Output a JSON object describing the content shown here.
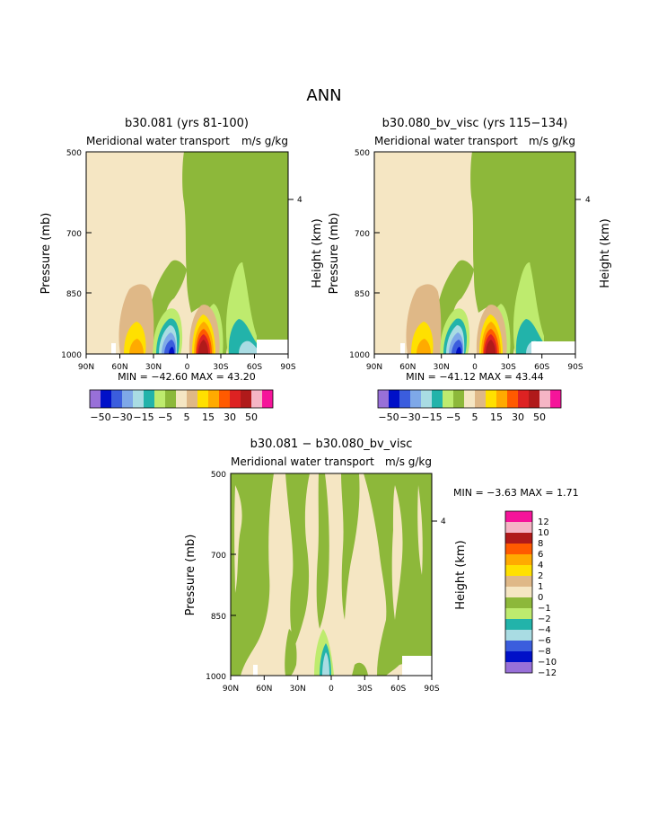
{
  "figure": {
    "title": "ANN"
  },
  "colors": {
    "tan": "#F5E6C3",
    "green": "#8DB83A",
    "lightgreen": "#BEEB6E",
    "teal": "#22B3AA",
    "lightblue": "#A9DCE3",
    "skyblue": "#7EA8E8",
    "blue": "#3B5DDD",
    "darkblue": "#0010C8",
    "purple": "#9870D8",
    "brown": "#DFB887",
    "yellow": "#FFE000",
    "orange": "#FFAA00",
    "orangered": "#FF5A00",
    "red": "#DD2222",
    "darkred": "#B01A1A",
    "pink": "#F5B5C5",
    "magenta": "#F5149A"
  },
  "chart_data": [
    {
      "type": "contour",
      "title": "b30.081 (yrs 81-100)",
      "subtitle": "Meridional water transport",
      "units": "m/s g/kg",
      "ylabel": "Pressure (mb)",
      "ylabel_right": "Height (km)",
      "xticks": [
        "90N",
        "60N",
        "30N",
        "0",
        "30S",
        "60S",
        "90S"
      ],
      "yticks": [
        "500",
        "700",
        "850",
        "1000"
      ],
      "right_ticks": [
        "4"
      ],
      "stats": "MIN = −42.60   MAX =   43.20",
      "colorbar_labels": [
        "−50",
        "−30",
        "−15",
        "−5",
        "5",
        "15",
        "30",
        "50"
      ]
    },
    {
      "type": "contour",
      "title": "b30.080_bv_visc (yrs 115−134)",
      "subtitle": "Meridional water transport",
      "units": "m/s g/kg",
      "ylabel": "Pressure (mb)",
      "ylabel_right": "Height (km)",
      "xticks": [
        "90N",
        "60N",
        "30N",
        "0",
        "30S",
        "60S",
        "90S"
      ],
      "yticks": [
        "500",
        "700",
        "850",
        "1000"
      ],
      "right_ticks": [
        "4"
      ],
      "stats": "MIN = −41.12   MAX =   43.44",
      "colorbar_labels": [
        "−50",
        "−30",
        "−15",
        "−5",
        "5",
        "15",
        "30",
        "50"
      ]
    },
    {
      "type": "contour",
      "title": "b30.081 − b30.080_bv_visc",
      "subtitle": "Meridional water transport",
      "units": "m/s g/kg",
      "ylabel": "Pressure (mb)",
      "ylabel_right": "Height (km)",
      "xticks": [
        "90N",
        "60N",
        "30N",
        "0",
        "30S",
        "60S",
        "90S"
      ],
      "yticks": [
        "500",
        "700",
        "850",
        "1000"
      ],
      "right_ticks": [
        "4"
      ],
      "stats": "MIN =   −3.63   MAX =    1.71",
      "colorbar_labels": [
        "12",
        "10",
        "8",
        "6",
        "4",
        "2",
        "1",
        "0",
        "−1",
        "−2",
        "−4",
        "−6",
        "−8",
        "−10",
        "−12"
      ]
    }
  ]
}
